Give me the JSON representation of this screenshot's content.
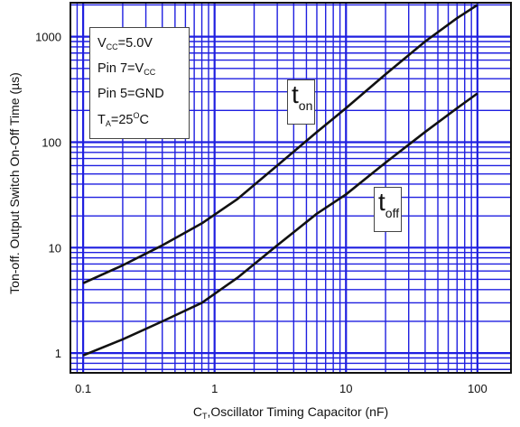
{
  "chart_data": {
    "type": "line",
    "title": "",
    "xlabel": {
      "sym": "C",
      "sub": "T",
      "rest": ",Oscillator Timing Capacitor (nF)"
    },
    "ylabel": "Ton-off. Output Switch On-Off Time (µs)",
    "xscale": "log",
    "yscale": "log",
    "xlim": [
      0.08,
      180
    ],
    "ylim": [
      0.65,
      2100
    ],
    "xticks": [
      0.1,
      1,
      10,
      100
    ],
    "xtick_labels": [
      "0.1",
      "1",
      "10",
      "100"
    ],
    "yticks": [
      1,
      10,
      100,
      1000
    ],
    "ytick_labels": [
      "1",
      "10",
      "100",
      "1000"
    ],
    "grid": true,
    "series": [
      {
        "name": "t_on",
        "label_main": "t",
        "label_sub": "on",
        "x": [
          0.1,
          0.2,
          0.4,
          0.8,
          1.5,
          3,
          6,
          10,
          20,
          40,
          70,
          100
        ],
        "y": [
          4.6,
          6.8,
          10.5,
          17,
          29,
          60,
          125,
          210,
          440,
          900,
          1500,
          2000
        ]
      },
      {
        "name": "t_off",
        "label_main": "t",
        "label_sub": "off",
        "x": [
          0.1,
          0.2,
          0.4,
          0.8,
          1.5,
          3,
          6,
          10,
          20,
          40,
          70,
          100
        ],
        "y": [
          0.95,
          1.35,
          2.0,
          3.0,
          5.2,
          10.5,
          21,
          32,
          64,
          125,
          210,
          290
        ]
      }
    ],
    "annotations": [
      {
        "sym": "V",
        "sub": "CC",
        "rest": "=5.0V"
      },
      {
        "sym": "Pin 7=V",
        "sub": "CC",
        "rest": ""
      },
      {
        "sym": "Pin 5=GND",
        "sub": "",
        "rest": ""
      },
      {
        "sym": "T",
        "sub": "A",
        "rest": "=25",
        "sup": "O",
        "tail": "C"
      }
    ],
    "colors": {
      "grid": "#1f1fe0",
      "curve": "#111111",
      "axis": "#111111"
    }
  }
}
